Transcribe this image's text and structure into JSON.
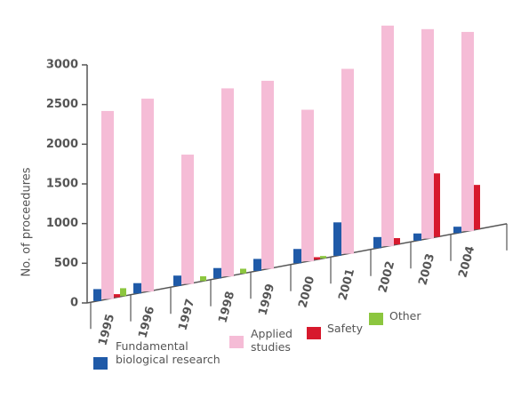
{
  "chart_data": {
    "type": "bar",
    "y_label": "No. of proceedures",
    "categories": [
      "1995",
      "1996",
      "1997",
      "1998",
      "1999",
      "2000",
      "2001",
      "2002",
      "2003",
      "2004"
    ],
    "series": [
      {
        "name": "Fundamental biological research",
        "color": "#1f5aa8",
        "values": [
          150,
          130,
          130,
          130,
          150,
          180,
          420,
          140,
          90,
          80
        ]
      },
      {
        "name": "Applied studies",
        "color": "#f5bcd6",
        "values": [
          2370,
          2430,
          1630,
          2370,
          2370,
          1910,
          2330,
          2780,
          2640,
          2510
        ]
      },
      {
        "name": "Safety",
        "color": "#d7192d",
        "values": [
          40,
          0,
          0,
          0,
          0,
          30,
          0,
          80,
          800,
          560
        ]
      },
      {
        "name": "Other",
        "color": "#8cc63f",
        "values": [
          100,
          0,
          60,
          60,
          0,
          30,
          0,
          0,
          0,
          0
        ]
      }
    ],
    "ylim": [
      0,
      3000
    ],
    "yticks": [
      0,
      500,
      1000,
      1500,
      2000,
      2500,
      3000
    ]
  }
}
